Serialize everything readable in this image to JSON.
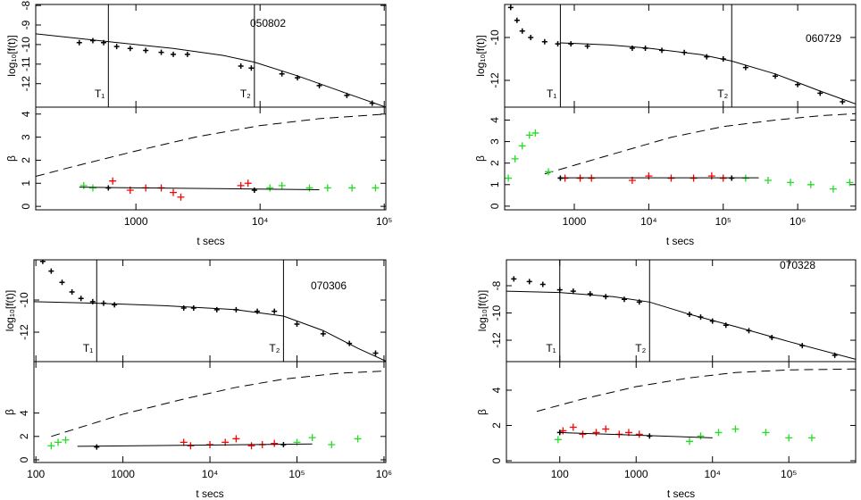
{
  "chart_data": [
    {
      "type": "scatter",
      "annotation": "050802",
      "y_label": "log₁₀[f(t)]",
      "log_x": true,
      "xlim": [
        156,
        103000
      ],
      "ylim": [
        -13.2,
        -7.95
      ],
      "yticks": [
        -8,
        -9,
        -10,
        -11,
        -12
      ],
      "vlines": [
        {
          "value": 600,
          "label": "T₁"
        },
        {
          "value": 9000,
          "label": "T₂"
        }
      ],
      "series": [
        {
          "color": "#000000",
          "style": "points",
          "x": [
            350,
            450,
            550,
            700,
            900,
            1200,
            1600,
            2000,
            2600,
            7000,
            8500,
            15000,
            20000,
            30000,
            50000,
            80000
          ],
          "values": [
            -9.9,
            -9.8,
            -9.9,
            -10.1,
            -10.2,
            -10.3,
            -10.4,
            -10.5,
            -10.5,
            -11.1,
            -11.2,
            -11.5,
            -11.7,
            -12.1,
            -12.6,
            -13.0
          ]
        },
        {
          "color": "#000000",
          "style": "line",
          "x": [
            156,
            600,
            2000,
            5000,
            9000,
            20000,
            50000,
            103000
          ],
          "values": [
            -9.45,
            -9.85,
            -10.2,
            -10.55,
            -10.9,
            -11.6,
            -12.5,
            -13.2
          ]
        }
      ]
    },
    {
      "type": "scatter",
      "x_label": "t secs",
      "y_label": "β",
      "log_x": true,
      "xlim": [
        156,
        103000
      ],
      "xticks": [
        1000,
        {
          "value": 10000,
          "label": "10⁴"
        },
        {
          "value": 100000,
          "label": "10⁵"
        }
      ],
      "ylim": [
        -0.15,
        4.3
      ],
      "yticks": [
        0,
        1,
        2,
        3,
        4
      ],
      "series": [
        {
          "color": "#000000",
          "style": "dashed",
          "x": [
            156,
            300,
            1000,
            3000,
            10000,
            30000,
            103000
          ],
          "values": [
            1.3,
            1.7,
            2.4,
            3.0,
            3.5,
            3.8,
            4.0
          ]
        },
        {
          "color": "#22dd22",
          "style": "points",
          "x": [
            380,
            450,
            12000,
            15000,
            25000,
            35000,
            55000,
            85000
          ],
          "values": [
            0.9,
            0.8,
            0.8,
            0.9,
            0.8,
            0.8,
            0.8,
            0.8
          ]
        },
        {
          "color": "#ff0000",
          "style": "points",
          "x": [
            650,
            900,
            1200,
            1600,
            2000,
            2300,
            7000,
            8000
          ],
          "values": [
            1.1,
            0.7,
            0.8,
            0.8,
            0.6,
            0.4,
            0.9,
            1.0
          ]
        },
        {
          "color": "#000000",
          "style": "points",
          "x": [
            600,
            9000
          ],
          "values": [
            0.8,
            0.7
          ]
        },
        {
          "color": "#000000",
          "style": "line",
          "x": [
            350,
            30000
          ],
          "values": [
            0.83,
            0.72
          ]
        }
      ]
    },
    {
      "type": "scatter",
      "annotation": "060729",
      "y_label": "log₁₀[f(t)]",
      "log_x": true,
      "xlim": [
        116,
        6000000
      ],
      "ylim": [
        -13.25,
        -8.46
      ],
      "yticks": [
        -10,
        -12
      ],
      "vlines": [
        {
          "value": 650,
          "label": "T₁"
        },
        {
          "value": 130000,
          "label": "T₂"
        }
      ],
      "series": [
        {
          "color": "#000000",
          "style": "points",
          "x": [
            140,
            170,
            200,
            260,
            400,
            600,
            900,
            1500,
            6000,
            9000,
            15000,
            30000,
            60000,
            100000,
            200000,
            500000,
            1000000,
            2000000,
            4000000
          ],
          "values": [
            -8.6,
            -9.2,
            -9.7,
            -10.0,
            -10.2,
            -10.3,
            -10.3,
            -10.4,
            -10.5,
            -10.5,
            -10.6,
            -10.7,
            -10.9,
            -11.0,
            -11.4,
            -11.8,
            -12.2,
            -12.6,
            -13.0
          ]
        },
        {
          "color": "#000000",
          "style": "line",
          "x": [
            650,
            3000,
            10000,
            50000,
            130000,
            500000,
            2000000,
            6000000
          ],
          "values": [
            -10.25,
            -10.35,
            -10.5,
            -10.8,
            -11.1,
            -11.7,
            -12.5,
            -13.1
          ]
        }
      ]
    },
    {
      "type": "scatter",
      "x_label": "t secs",
      "y_label": "β",
      "log_x": true,
      "xlim": [
        116,
        6000000
      ],
      "xticks": [
        1000,
        {
          "value": 10000,
          "label": "10⁴"
        },
        {
          "value": 100000,
          "label": "10⁵"
        },
        {
          "value": 1000000,
          "label": "10⁶"
        }
      ],
      "ylim": [
        -0.17,
        4.6
      ],
      "yticks": [
        0,
        1,
        2,
        3,
        4
      ],
      "series": [
        {
          "color": "#000000",
          "style": "dashed",
          "x": [
            400,
            1000,
            5000,
            20000,
            100000,
            500000,
            2000000,
            6000000
          ],
          "values": [
            1.5,
            1.9,
            2.6,
            3.2,
            3.7,
            4.0,
            4.2,
            4.3
          ]
        },
        {
          "color": "#22dd22",
          "style": "points",
          "x": [
            130,
            160,
            200,
            250,
            300,
            450,
            200000,
            400000,
            800000,
            1500000,
            3000000,
            5000000
          ],
          "values": [
            1.3,
            2.2,
            2.8,
            3.3,
            3.4,
            1.6,
            1.3,
            1.2,
            1.1,
            1.0,
            0.8,
            1.1
          ]
        },
        {
          "color": "#ff0000",
          "style": "points",
          "x": [
            750,
            1200,
            1700,
            6000,
            10000,
            20000,
            40000,
            70000,
            100000
          ],
          "values": [
            1.3,
            1.3,
            1.3,
            1.2,
            1.4,
            1.3,
            1.3,
            1.4,
            1.3
          ]
        },
        {
          "color": "#000000",
          "style": "points",
          "x": [
            650,
            130000
          ],
          "values": [
            1.3,
            1.3
          ]
        },
        {
          "color": "#000000",
          "style": "line",
          "x": [
            600,
            300000
          ],
          "values": [
            1.32,
            1.32
          ]
        }
      ]
    },
    {
      "type": "scatter",
      "annotation": "070306",
      "y_label": "log₁₀[f(t)]",
      "log_x": true,
      "xlim": [
        95,
        1050000
      ],
      "ylim": [
        -13.83,
        -7.5
      ],
      "yticks": [
        -10,
        -12
      ],
      "vlines": [
        {
          "value": 500,
          "label": "T₁"
        },
        {
          "value": 70000,
          "label": "T₂"
        }
      ],
      "series": [
        {
          "color": "#000000",
          "style": "points",
          "x": [
            120,
            150,
            200,
            260,
            330,
            450,
            600,
            800,
            5000,
            6500,
            12000,
            20000,
            35000,
            55000,
            100000,
            200000,
            400000,
            800000
          ],
          "values": [
            -7.6,
            -8.2,
            -8.9,
            -9.5,
            -9.9,
            -10.1,
            -10.2,
            -10.3,
            -10.5,
            -10.5,
            -10.6,
            -10.6,
            -10.7,
            -10.7,
            -11.5,
            -12.1,
            -12.7,
            -13.3
          ]
        },
        {
          "color": "#000000",
          "style": "line",
          "x": [
            95,
            500,
            3000,
            20000,
            70000,
            200000,
            500000,
            1050000
          ],
          "values": [
            -10.1,
            -10.2,
            -10.35,
            -10.6,
            -11.0,
            -11.9,
            -13.0,
            -13.8
          ]
        }
      ]
    },
    {
      "type": "scatter",
      "x_label": "t secs",
      "y_label": "β",
      "log_x": true,
      "xlim": [
        95,
        1050000
      ],
      "xticks": [
        100,
        1000,
        {
          "value": 10000,
          "label": "10⁴"
        },
        {
          "value": 100000,
          "label": "10⁵"
        },
        {
          "value": 1000000,
          "label": "10⁶"
        }
      ],
      "ylim": [
        -0.23,
        8.4
      ],
      "yticks": [
        0,
        2,
        4
      ],
      "series": [
        {
          "color": "#000000",
          "style": "dashed",
          "x": [
            150,
            300,
            1000,
            5000,
            20000,
            70000,
            300000,
            1050000
          ],
          "values": [
            2.0,
            2.7,
            3.9,
            5.2,
            6.2,
            6.9,
            7.4,
            7.6
          ]
        },
        {
          "color": "#22dd22",
          "style": "points",
          "x": [
            150,
            180,
            220,
            100000,
            150000,
            250000,
            500000
          ],
          "values": [
            1.2,
            1.5,
            1.7,
            1.5,
            1.9,
            1.3,
            1.8
          ]
        },
        {
          "color": "#ff0000",
          "style": "points",
          "x": [
            5000,
            6000,
            10000,
            15000,
            20000,
            30000,
            40000,
            55000
          ],
          "values": [
            1.5,
            1.2,
            1.3,
            1.5,
            1.8,
            1.2,
            1.3,
            1.4
          ]
        },
        {
          "color": "#000000",
          "style": "points",
          "x": [
            500,
            70000
          ],
          "values": [
            1.1,
            1.3
          ]
        },
        {
          "color": "#000000",
          "style": "line",
          "x": [
            300,
            150000
          ],
          "values": [
            1.15,
            1.35
          ]
        }
      ]
    },
    {
      "type": "scatter",
      "annotation": "070328",
      "y_label": "log₁₀[f(t)]",
      "log_x": true,
      "xlim": [
        20,
        750000
      ],
      "ylim": [
        -13.57,
        -6.1
      ],
      "yticks": [
        -8,
        -10,
        -12
      ],
      "vlines": [
        {
          "value": 100,
          "label": "T₁"
        },
        {
          "value": 1500,
          "label": "T₂"
        }
      ],
      "series": [
        {
          "color": "#000000",
          "style": "points",
          "x": [
            25,
            40,
            60,
            100,
            150,
            250,
            400,
            700,
            1100,
            5000,
            7000,
            10000,
            15000,
            30000,
            60000,
            150000,
            400000
          ],
          "values": [
            -7.5,
            -7.7,
            -7.9,
            -8.3,
            -8.4,
            -8.6,
            -8.8,
            -9.0,
            -9.2,
            -10.1,
            -10.3,
            -10.6,
            -10.9,
            -11.3,
            -11.8,
            -12.4,
            -13.1
          ]
        },
        {
          "color": "#000000",
          "style": "line",
          "x": [
            20,
            100,
            500,
            1500,
            5000,
            20000,
            100000,
            750000
          ],
          "values": [
            -8.4,
            -8.5,
            -8.8,
            -9.2,
            -10.1,
            -11.0,
            -12.1,
            -13.4
          ]
        }
      ]
    },
    {
      "type": "scatter",
      "x_label": "t secs",
      "y_label": "β",
      "log_x": true,
      "xlim": [
        20,
        750000
      ],
      "xticks": [
        100,
        1000,
        {
          "value": 10000,
          "label": "10⁴"
        },
        {
          "value": 100000,
          "label": "10⁵"
        }
      ],
      "ylim": [
        -0.1,
        5.62
      ],
      "yticks": [
        0,
        2,
        4
      ],
      "series": [
        {
          "color": "#000000",
          "style": "dashed",
          "x": [
            50,
            200,
            1000,
            5000,
            20000,
            100000,
            750000
          ],
          "values": [
            2.8,
            3.5,
            4.2,
            4.7,
            5.0,
            5.15,
            5.2
          ]
        },
        {
          "color": "#22dd22",
          "style": "points",
          "x": [
            95,
            5000,
            7000,
            12000,
            20000,
            50000,
            100000,
            200000
          ],
          "values": [
            1.2,
            1.1,
            1.4,
            1.6,
            1.8,
            1.6,
            1.3,
            1.3
          ]
        },
        {
          "color": "#ff0000",
          "style": "points",
          "x": [
            110,
            150,
            200,
            300,
            400,
            600,
            800,
            1100
          ],
          "values": [
            1.7,
            1.9,
            1.5,
            1.6,
            1.8,
            1.5,
            1.6,
            1.5
          ]
        },
        {
          "color": "#000000",
          "style": "points",
          "x": [
            100,
            1500
          ],
          "values": [
            1.6,
            1.4
          ]
        },
        {
          "color": "#000000",
          "style": "line",
          "x": [
            100,
            10000
          ],
          "values": [
            1.6,
            1.3
          ]
        }
      ]
    }
  ]
}
